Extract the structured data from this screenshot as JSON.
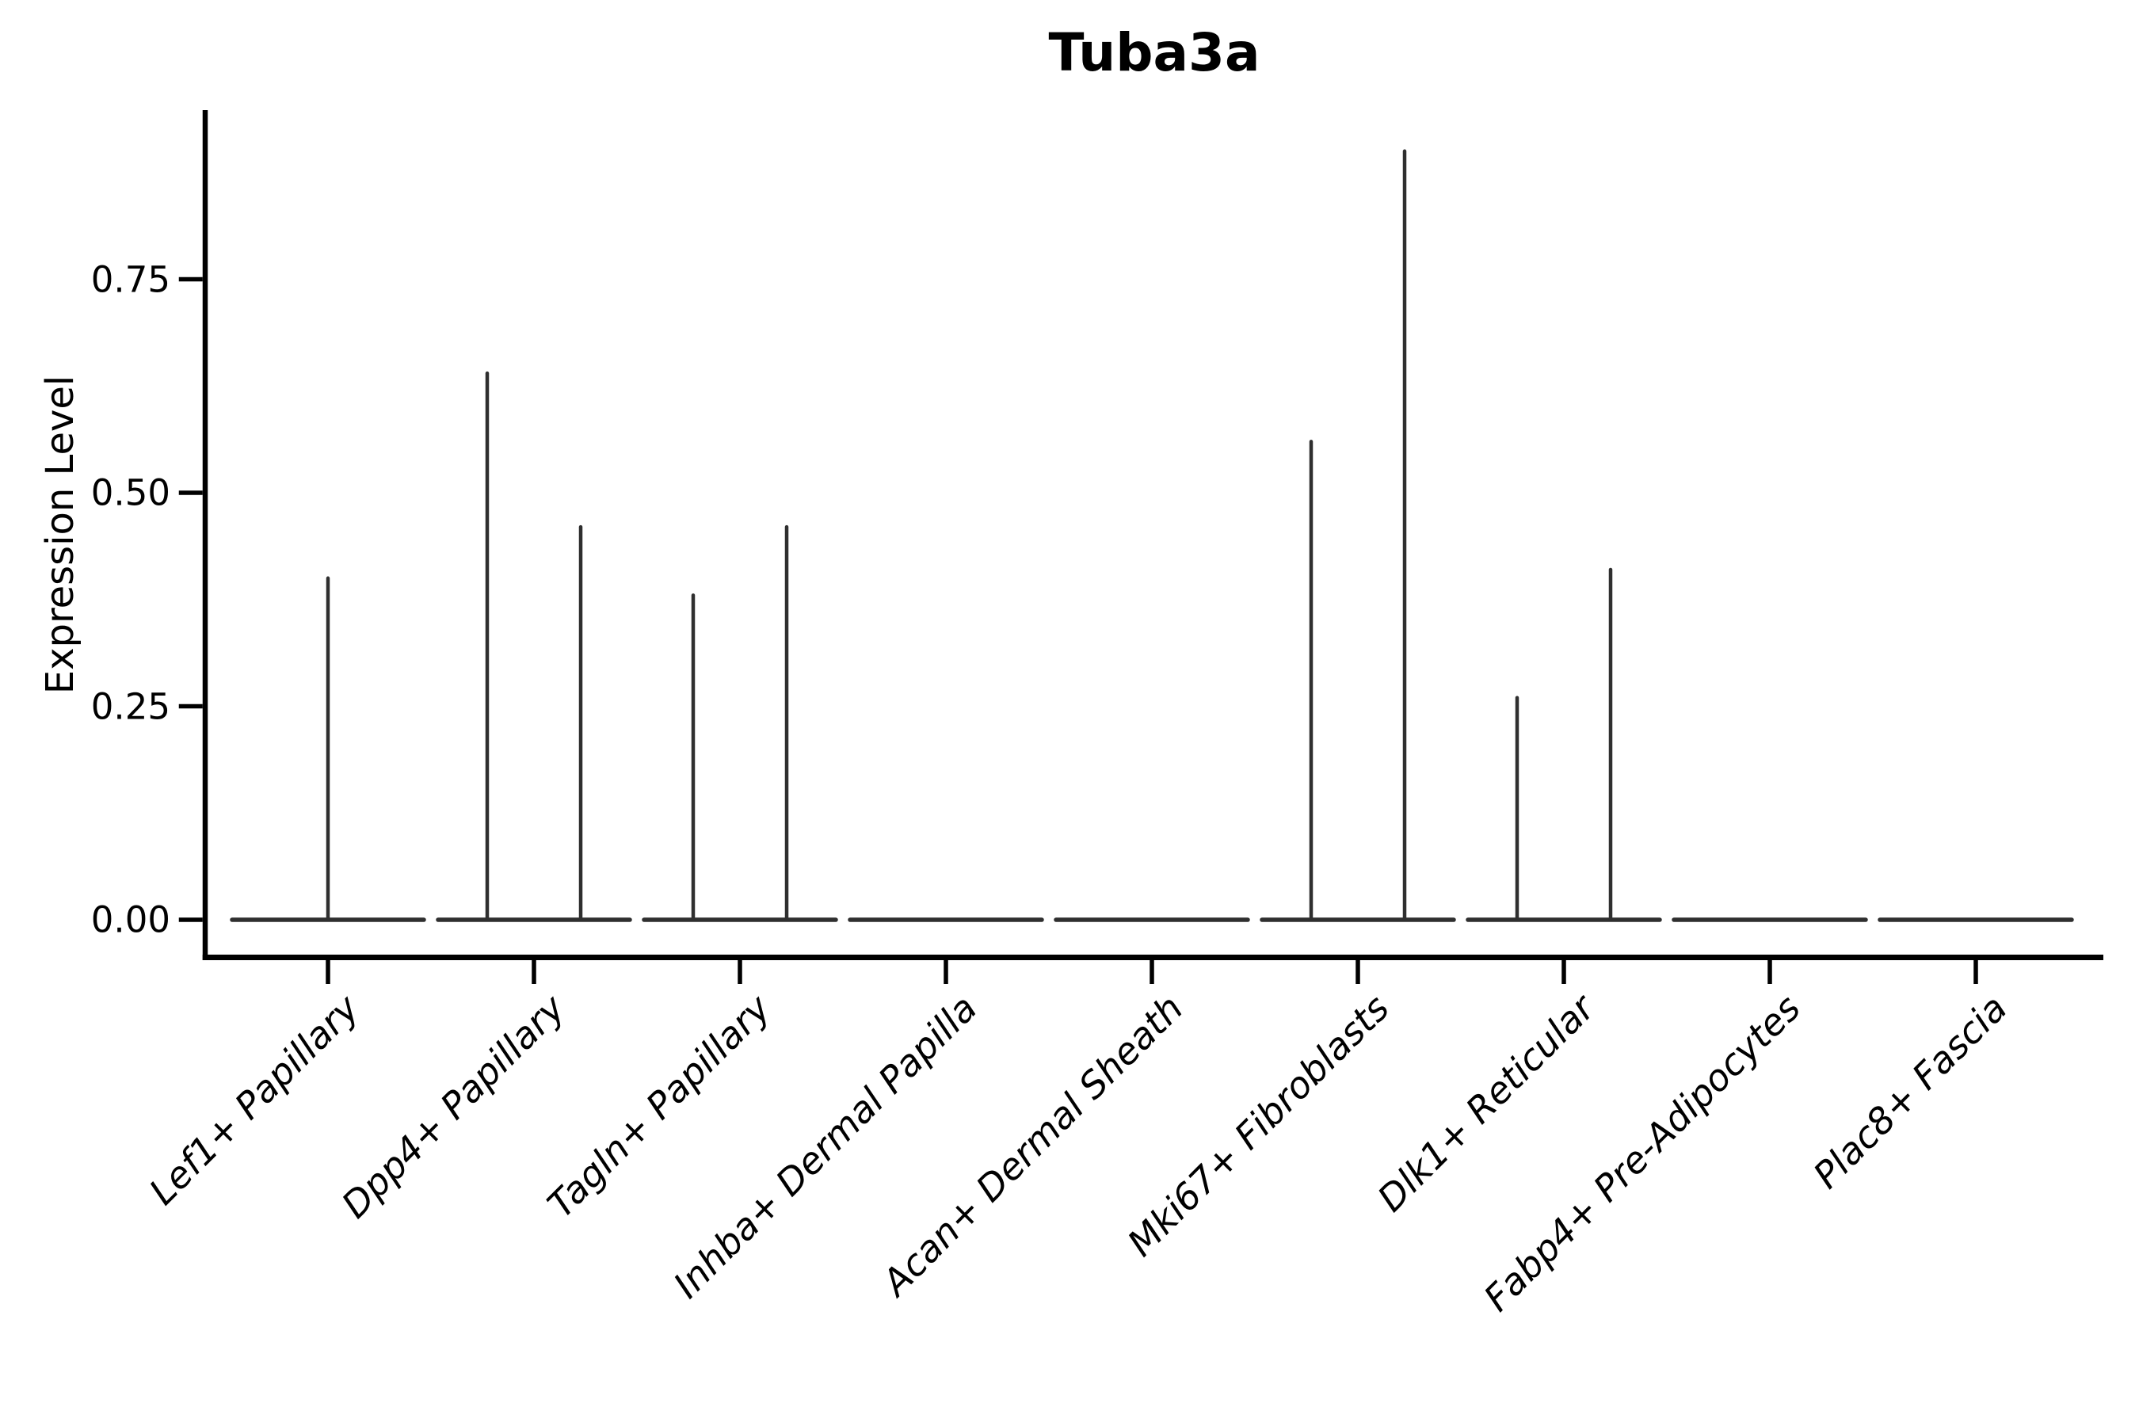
{
  "chart_data": {
    "type": "violin",
    "title": "Tuba3a",
    "ylabel": "Expression Level",
    "xlabel": "",
    "ytick_labels": [
      "0.00",
      "0.25",
      "0.50",
      "0.75"
    ],
    "ytick_values": [
      0,
      0.25,
      0.5,
      0.75
    ],
    "ylim": [
      -0.044,
      0.948
    ],
    "grid": false,
    "legend": "none",
    "x_label_rotation_deg": 45,
    "x_label_style": "italic",
    "categories": [
      "Lef1+ Papillary",
      "Dpp4+ Papillary",
      "Tagln+ Papillary",
      "Inhba+ Dermal Papilla",
      "Acan+ Dermal Sheath",
      "Mki67+ Fibroblasts",
      "Dlk1+ Reticular",
      "Fabp4+ Pre-Adipocytes",
      "Plac8+ Fascia"
    ],
    "violins": [
      {
        "category": "Lef1+ Papillary",
        "groups": [
          {
            "position": "full",
            "bulk_at": 0,
            "max_expression": 0.4
          }
        ]
      },
      {
        "category": "Dpp4+ Papillary",
        "groups": [
          {
            "position": "left",
            "bulk_at": 0,
            "max_expression": 0.64
          },
          {
            "position": "right",
            "bulk_at": 0,
            "max_expression": 0.46
          }
        ]
      },
      {
        "category": "Tagln+ Papillary",
        "groups": [
          {
            "position": "left",
            "bulk_at": 0,
            "max_expression": 0.38
          },
          {
            "position": "right",
            "bulk_at": 0,
            "max_expression": 0.46
          }
        ]
      },
      {
        "category": "Inhba+ Dermal Papilla",
        "groups": [
          {
            "position": "full",
            "bulk_at": 0,
            "max_expression": 0
          }
        ]
      },
      {
        "category": "Acan+ Dermal Sheath",
        "groups": [
          {
            "position": "full",
            "bulk_at": 0,
            "max_expression": 0
          }
        ]
      },
      {
        "category": "Mki67+ Fibroblasts",
        "groups": [
          {
            "position": "left",
            "bulk_at": 0,
            "max_expression": 0.56
          },
          {
            "position": "right",
            "bulk_at": 0,
            "max_expression": 0.9
          }
        ]
      },
      {
        "category": "Dlk1+ Reticular",
        "groups": [
          {
            "position": "left",
            "bulk_at": 0,
            "max_expression": 0.26
          },
          {
            "position": "right",
            "bulk_at": 0,
            "max_expression": 0.41
          }
        ]
      },
      {
        "category": "Fabp4+ Pre-Adipocytes",
        "groups": [
          {
            "position": "full",
            "bulk_at": 0,
            "max_expression": 0
          }
        ]
      },
      {
        "category": "Plac8+ Fascia",
        "groups": [
          {
            "position": "full",
            "bulk_at": 0,
            "max_expression": 0
          }
        ]
      }
    ],
    "colors": {
      "violin_stroke": "#2f2f2f",
      "axis": "#000000",
      "text": "#000000",
      "background": "#ffffff"
    }
  }
}
